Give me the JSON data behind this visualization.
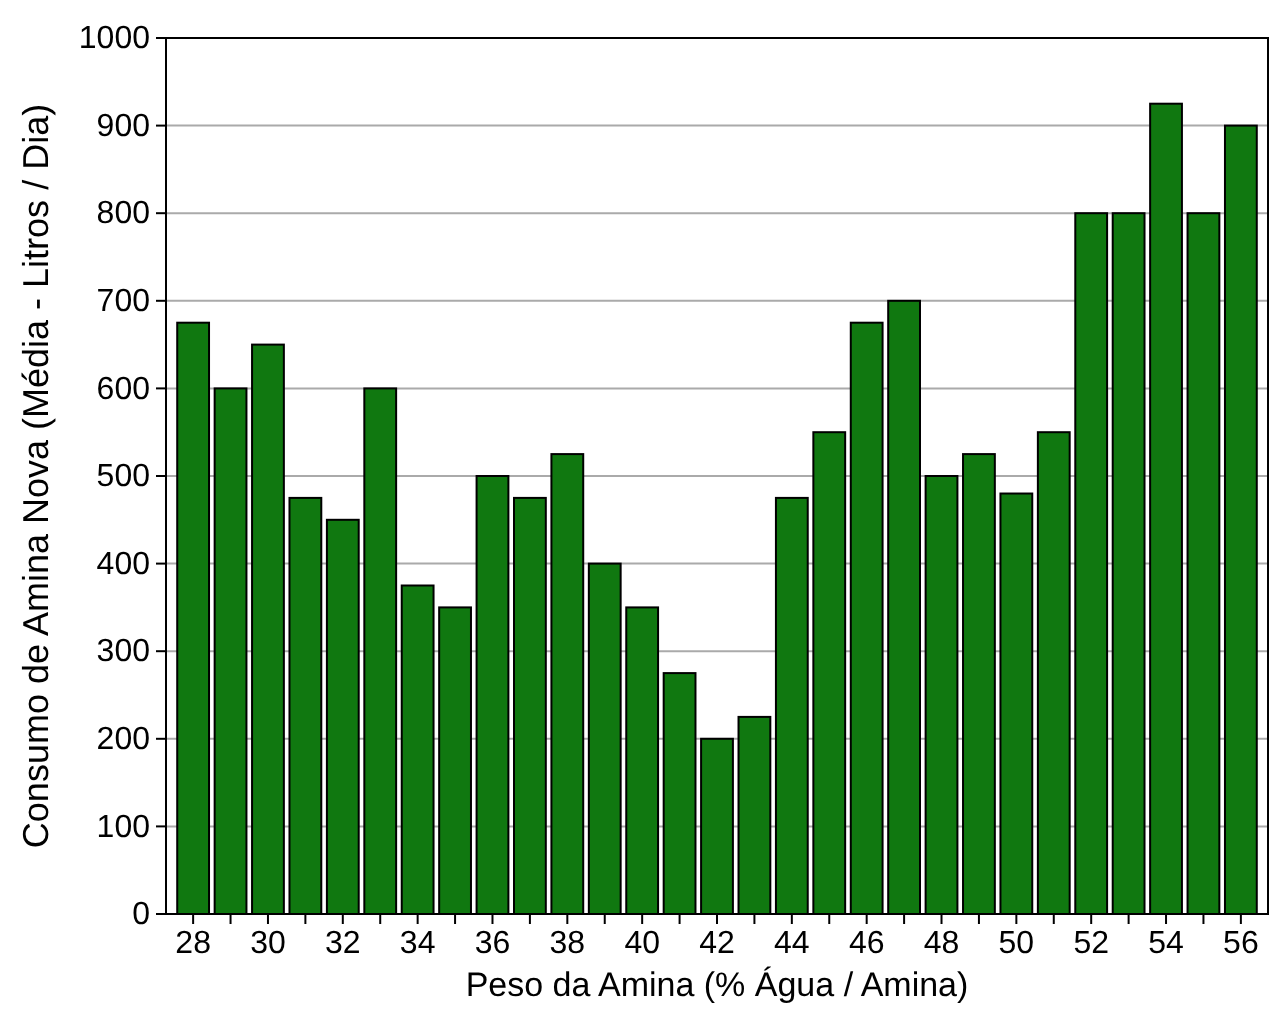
{
  "chart_data": {
    "type": "bar",
    "xlabel": "Peso da Amina (% Água / Amina)",
    "ylabel": "Consumo de Amina Nova (Média - Litros / Dia)",
    "categories": [
      "28",
      null,
      "30",
      null,
      "32",
      null,
      "34",
      null,
      "36",
      null,
      "38",
      null,
      "40",
      null,
      "42",
      null,
      "44",
      null,
      "46",
      null,
      "48",
      null,
      "50",
      null,
      "52",
      null,
      "54",
      null,
      "56"
    ],
    "values": [
      675,
      600,
      650,
      475,
      450,
      600,
      375,
      350,
      500,
      475,
      525,
      400,
      350,
      275,
      200,
      225,
      475,
      550,
      675,
      700,
      500,
      525,
      480,
      550,
      800,
      800,
      925,
      800,
      900
    ],
    "color": "#107810",
    "ylim": [
      0,
      1000
    ],
    "yticks": [
      0,
      100,
      200,
      300,
      400,
      500,
      600,
      700,
      800,
      900,
      1000
    ],
    "grid": "y"
  }
}
